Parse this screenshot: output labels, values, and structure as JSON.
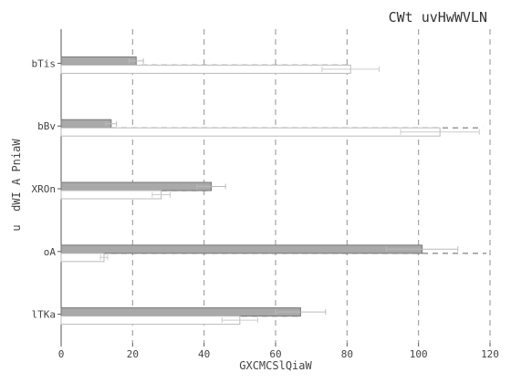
{
  "chart_data": {
    "type": "bar",
    "orientation": "horizontal",
    "title": "CWt uvHwWVLN",
    "xlabel": "GXCMCSlQiaW",
    "ylabel": "u  dWI A PniaW",
    "xlim": [
      0,
      120
    ],
    "xticks": [
      0,
      20,
      40,
      60,
      80,
      100,
      120
    ],
    "grid": true,
    "categories": [
      "bTis",
      "bBv",
      "XROn",
      "oA",
      "lTKa"
    ],
    "series": [
      {
        "values": [
          21,
          14,
          42,
          101,
          67
        ],
        "errors": [
          2,
          1.5,
          4,
          10,
          7
        ],
        "color": "#a9a9a9"
      },
      {
        "values": [
          81,
          106,
          28,
          12,
          50
        ],
        "errors": [
          8,
          11,
          2.5,
          1,
          5
        ],
        "color": "#ffffff"
      }
    ],
    "reference_lines": [
      81,
      118,
      42,
      119,
      67
    ]
  }
}
